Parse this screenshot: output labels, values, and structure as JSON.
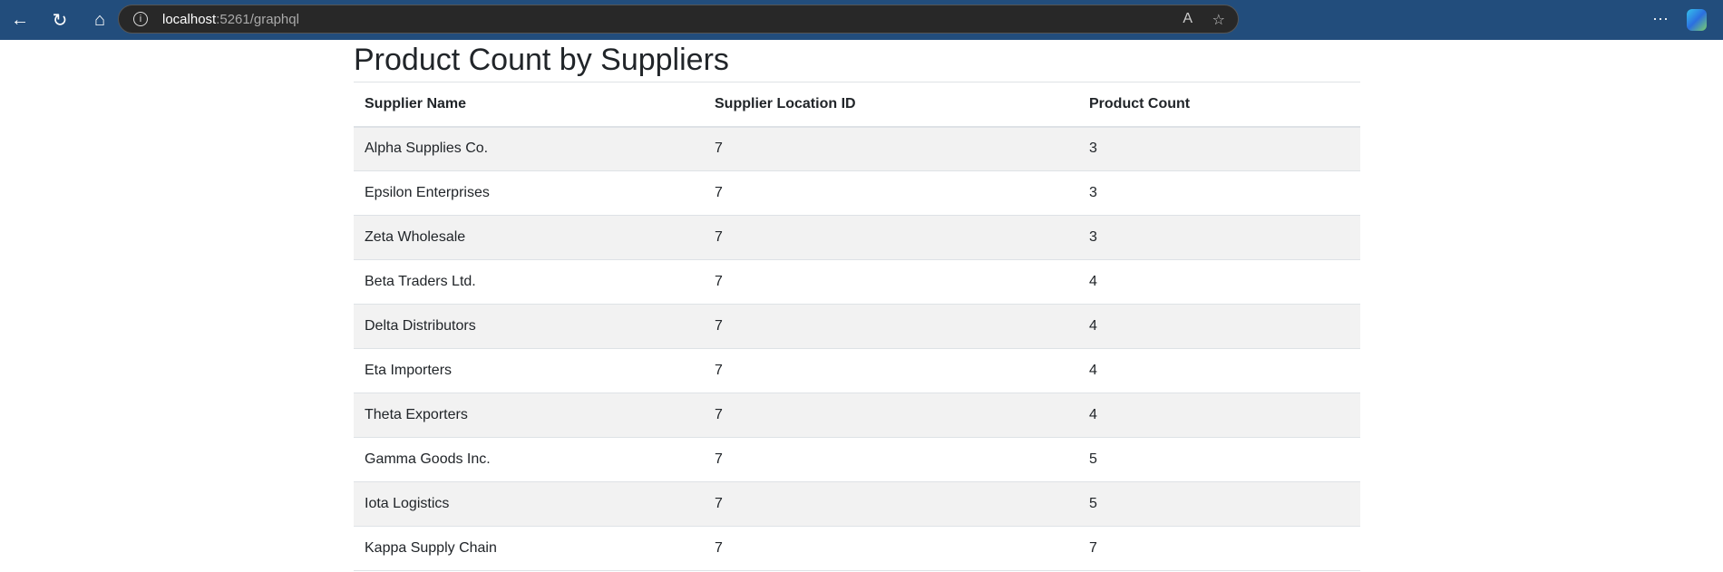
{
  "browser": {
    "url_host": "localhost",
    "url_rest": ":5261/graphql",
    "icons": [
      "back-icon",
      "refresh-icon",
      "home-icon",
      "info-icon",
      "read-aloud-icon",
      "favorite-star-icon",
      "more-icon",
      "copilot-icon"
    ]
  },
  "page": {
    "title": "Product Count by Suppliers"
  },
  "table": {
    "headers": [
      "Supplier Name",
      "Supplier Location ID",
      "Product Count"
    ],
    "rows": [
      [
        "Alpha Supplies Co.",
        "7",
        "3"
      ],
      [
        "Epsilon Enterprises",
        "7",
        "3"
      ],
      [
        "Zeta Wholesale",
        "7",
        "3"
      ],
      [
        "Beta Traders Ltd.",
        "7",
        "4"
      ],
      [
        "Delta Distributors",
        "7",
        "4"
      ],
      [
        "Eta Importers",
        "7",
        "4"
      ],
      [
        "Theta Exporters",
        "7",
        "4"
      ],
      [
        "Gamma Goods Inc.",
        "7",
        "5"
      ],
      [
        "Iota Logistics",
        "7",
        "5"
      ],
      [
        "Kappa Supply Chain",
        "7",
        "7"
      ]
    ]
  }
}
